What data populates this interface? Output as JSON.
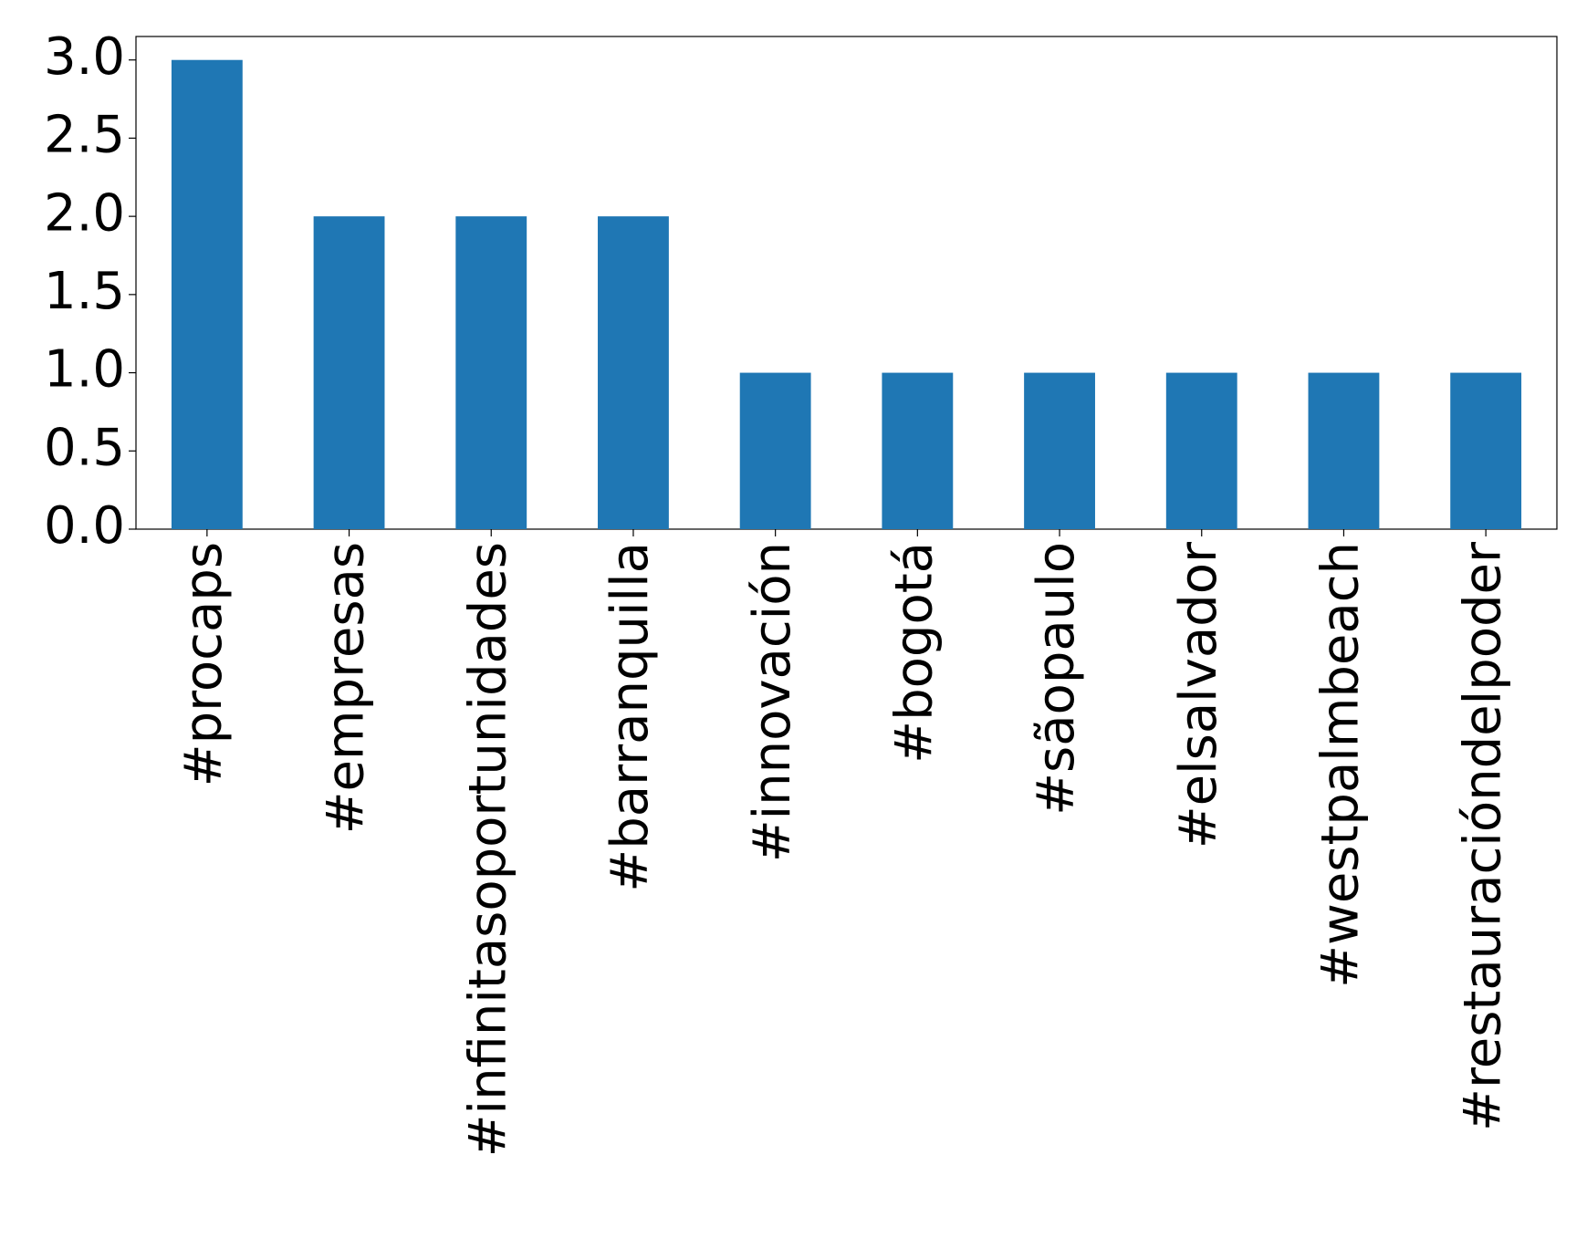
{
  "chart_data": {
    "type": "bar",
    "categories": [
      "#procaps",
      "#empresas",
      "#infinitasoportunidades",
      "#barranquilla",
      "#innovación",
      "#bogotá",
      "#sãopaulo",
      "#elsalvador",
      "#westpalmbeach",
      "#restauracióndelpoder"
    ],
    "values": [
      3,
      2,
      2,
      2,
      1,
      1,
      1,
      1,
      1,
      1
    ],
    "color": "#1f77b4",
    "ylim": [
      0,
      3.15
    ],
    "yticks": [
      {
        "value": 0,
        "label": "0.0"
      },
      0.5,
      {
        "value": 1,
        "label": "1.0"
      },
      1.5,
      {
        "value": 2,
        "label": "2.0"
      },
      2.5,
      {
        "value": 3,
        "label": "3.0"
      }
    ],
    "grid": false
  }
}
